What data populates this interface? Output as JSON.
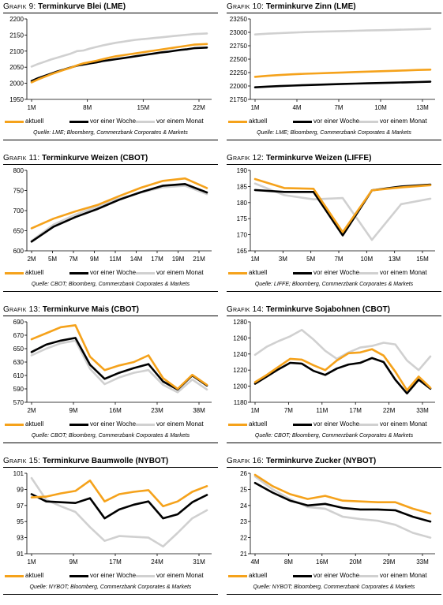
{
  "colors": {
    "aktuell": "#f5a21b",
    "woche": "#000000",
    "monat": "#d0d0d0"
  },
  "legend": [
    "aktuell",
    "vor einer Woche",
    "vor einem Monat"
  ],
  "panels": [
    {
      "prefix": "Grafik 9:",
      "title": "Terminkurve Blei (LME)",
      "source": "Quelle: LME; Bloomberg, Commerzbank Corporates & Markets",
      "chart_data": {
        "type": "line",
        "title": "Terminkurve Blei (LME)",
        "x_ticks": [
          "1M",
          "8M",
          "15M",
          "22M"
        ],
        "yticks": [
          1950,
          2000,
          2050,
          2100,
          2150,
          2200
        ],
        "ylim": [
          1950,
          2200
        ],
        "series": [
          {
            "name": "aktuell",
            "values": [
              2003,
              2012,
              2020,
              2028,
              2035,
              2042,
              2048,
              2056,
              2062,
              2066,
              2070,
              2075,
              2080,
              2084,
              2087,
              2090,
              2093,
              2096,
              2099,
              2102,
              2105,
              2108,
              2111,
              2114,
              2117,
              2120,
              2121,
              2122
            ]
          },
          {
            "name": "vor einer Woche",
            "values": [
              2007,
              2016,
              2023,
              2030,
              2037,
              2043,
              2049,
              2055,
              2058,
              2062,
              2065,
              2069,
              2072,
              2075,
              2078,
              2081,
              2084,
              2087,
              2090,
              2093,
              2096,
              2098,
              2101,
              2104,
              2106,
              2109,
              2110,
              2111
            ]
          },
          {
            "name": "vor einem Monat",
            "values": [
              2052,
              2060,
              2067,
              2074,
              2080,
              2086,
              2092,
              2100,
              2102,
              2108,
              2113,
              2118,
              2122,
              2126,
              2129,
              2132,
              2135,
              2137,
              2139,
              2141,
              2143,
              2145,
              2147,
              2149,
              2151,
              2153,
              2154,
              2155
            ]
          }
        ]
      }
    },
    {
      "prefix": "Grafik 10:",
      "title": "Terminkurve Zinn (LME)",
      "source": "Quelle: LME; Bloomberg, Commerzbank Corporates & Markets",
      "chart_data": {
        "type": "line",
        "title": "Terminkurve Zinn (LME)",
        "x_ticks": [
          "1M",
          "4M",
          "7M",
          "10M",
          "13M"
        ],
        "yticks": [
          21750,
          22000,
          22250,
          22500,
          22750,
          23000,
          23250
        ],
        "ylim": [
          21750,
          23250
        ],
        "series": [
          {
            "name": "aktuell",
            "values": [
              22170,
              22190,
              22205,
              22218,
              22228,
              22236,
              22244,
              22252,
              22260,
              22268,
              22275,
              22283,
              22290,
              22298,
              22305
            ]
          },
          {
            "name": "vor einer Woche",
            "values": [
              21975,
              21988,
              21998,
              22008,
              22016,
              22024,
              22031,
              22038,
              22044,
              22050,
              22056,
              22062,
              22068,
              22074,
              22080
            ]
          },
          {
            "name": "vor einem Monat",
            "values": [
              22960,
              22975,
              22985,
              22995,
              23005,
              23012,
              23018,
              23024,
              23030,
              23035,
              23040,
              23046,
              23052,
              23058,
              23064
            ]
          }
        ]
      }
    },
    {
      "prefix": "Grafik 11:",
      "title": "Terminkurve Weizen (CBOT)",
      "source": "Quelle: CBOT; Bloomberg, Commerzbank Corporates & Markets",
      "chart_data": {
        "type": "line",
        "title": "Terminkurve Weizen (CBOT)",
        "x_ticks": [
          "2M",
          "5M",
          "7M",
          "9M",
          "11M",
          "14M",
          "17M",
          "19M",
          "21M"
        ],
        "yticks": [
          600,
          650,
          700,
          750,
          800
        ],
        "ylim": [
          600,
          800
        ],
        "series": [
          {
            "name": "aktuell",
            "values": [
              656,
              680,
              698,
              714,
              736,
              757,
              774,
              780,
              756
            ]
          },
          {
            "name": "vor einer Woche",
            "values": [
              623,
              660,
              684,
              704,
              727,
              746,
              762,
              766,
              745
            ]
          },
          {
            "name": "vor einem Monat",
            "values": [
              625,
              665,
              690,
              710,
              730,
              745,
              758,
              762,
              741
            ]
          }
        ]
      }
    },
    {
      "prefix": "Grafik 12:",
      "title": "Terminkurve Weizen (LIFFE)",
      "source": "Quelle: LIFFE; Bloomberg, Commerzbank Corporates & Markets",
      "chart_data": {
        "type": "line",
        "title": "Terminkurve Weizen (LIFFE)",
        "x_ticks": [
          "1M",
          "3M",
          "5M",
          "7M",
          "10M",
          "13M",
          "15M"
        ],
        "yticks": [
          165,
          170,
          175,
          180,
          185,
          190
        ],
        "ylim": [
          165,
          190
        ],
        "series": [
          {
            "name": "aktuell",
            "values": [
              187.3,
              184.5,
              184.3,
              170.8,
              183.8,
              184.7,
              185.4
            ]
          },
          {
            "name": "vor einer Woche",
            "values": [
              183.9,
              183.3,
              183.3,
              169.8,
              183.8,
              185.0,
              185.6
            ]
          },
          {
            "name": "vor einem Monat",
            "values": [
              185.9,
              182.3,
              181.0,
              181.4,
              168.4,
              179.5,
              181.2
            ]
          }
        ]
      }
    },
    {
      "prefix": "Grafik 13:",
      "title": "Terminkurve Mais (CBOT)",
      "source": "Quelle: CBOT; Bloomberg, Commerzbank Corporates & Markets",
      "chart_data": {
        "type": "line",
        "title": "Terminkurve Mais (CBOT)",
        "x_ticks": [
          "2M",
          "9M",
          "16M",
          "23M",
          "38M"
        ],
        "yticks": [
          570,
          590,
          610,
          630,
          650,
          670,
          690
        ],
        "ylim": [
          570,
          690
        ],
        "series": [
          {
            "name": "aktuell",
            "values": [
              664,
              673,
              682,
              685,
              638,
              618,
              625,
              630,
              640,
              606,
              590,
              611,
              596
            ]
          },
          {
            "name": "vor einer Woche",
            "values": [
              645,
              656,
              662,
              666,
              626,
              605,
              614,
              621,
              627,
              601,
              589,
              610,
              595
            ]
          },
          {
            "name": "vor einem Monat",
            "values": [
              640,
              650,
              658,
              662,
              620,
              597,
              607,
              614,
              618,
              596,
              585,
              604,
              589
            ]
          }
        ]
      }
    },
    {
      "prefix": "Grafik 14:",
      "title": "Terminkurve Sojabohnen (CBOT)",
      "source": "Quelle: CBOT; Bloomberg, Commerzbank Corporates & Markets",
      "chart_data": {
        "type": "line",
        "title": "Terminkurve Sojabohnen (CBOT)",
        "x_ticks": [
          "1M",
          "7M",
          "11M",
          "17M",
          "22M",
          "33M"
        ],
        "yticks": [
          1180,
          1200,
          1220,
          1240,
          1260,
          1280
        ],
        "ylim": [
          1180,
          1280
        ],
        "series": [
          {
            "name": "aktuell",
            "values": [
              1205,
              1214,
              1224,
              1234,
              1233,
              1226,
              1220,
              1232,
              1241,
              1242,
              1246,
              1238,
              1218,
              1195,
              1212,
              1198
            ]
          },
          {
            "name": "vor einer Woche",
            "values": [
              1203,
              1212,
              1221,
              1229,
              1228,
              1219,
              1214,
              1222,
              1227,
              1229,
              1235,
              1230,
              1208,
              1191,
              1208,
              1197
            ]
          },
          {
            "name": "vor einem Monat",
            "values": [
              1239,
              1249,
              1256,
              1262,
              1270,
              1258,
              1244,
              1234,
              1242,
              1248,
              1250,
              1254,
              1252,
              1232,
              1220,
              1237
            ]
          }
        ]
      }
    },
    {
      "prefix": "Grafik 15:",
      "title": "Terminkurve Baumwolle (NYBOT)",
      "source": "Quelle: NYBOT; Bloomberg, Commerzbank Corporates & Markets",
      "chart_data": {
        "type": "line",
        "title": "Terminkurve Baumwolle (NYBOT)",
        "x_ticks": [
          "1M",
          "9M",
          "17M",
          "24M",
          "31M"
        ],
        "yticks": [
          91,
          93,
          95,
          97,
          99,
          101
        ],
        "ylim": [
          91,
          101
        ],
        "series": [
          {
            "name": "aktuell",
            "values": [
              98.0,
              98.1,
              98.5,
              98.8,
              100.1,
              97.5,
              98.4,
              98.7,
              98.9,
              96.9,
              97.5,
              98.7,
              99.4
            ]
          },
          {
            "name": "vor einer Woche",
            "values": [
              98.4,
              97.5,
              97.4,
              97.3,
              97.9,
              95.4,
              96.5,
              97.1,
              97.5,
              95.4,
              95.9,
              97.4,
              98.3
            ]
          },
          {
            "name": "vor einem Monat",
            "values": [
              100.4,
              97.7,
              96.9,
              96.2,
              94.3,
              92.6,
              93.2,
              93.1,
              93.0,
              91.9,
              93.6,
              95.4,
              96.4
            ]
          }
        ]
      }
    },
    {
      "prefix": "Grafik 16:",
      "title": "Terminkurve Zucker (NYBOT)",
      "source": "Quelle: NYBOT; Bloomberg, Commerzbank Corporates & Markets",
      "chart_data": {
        "type": "line",
        "title": "Terminkurve Zucker (NYBOT)",
        "x_ticks": [
          "4M",
          "8M",
          "16M",
          "20M",
          "29M",
          "33M"
        ],
        "yticks": [
          21,
          22,
          23,
          24,
          25,
          26
        ],
        "ylim": [
          21,
          26
        ],
        "series": [
          {
            "name": "aktuell",
            "values": [
              25.9,
              25.2,
              24.7,
              24.4,
              24.6,
              24.3,
              24.25,
              24.2,
              24.2,
              23.8,
              23.5
            ]
          },
          {
            "name": "vor einer Woche",
            "values": [
              25.4,
              24.8,
              24.3,
              24.0,
              24.1,
              23.85,
              23.75,
              23.75,
              23.7,
              23.3,
              23.0
            ]
          },
          {
            "name": "vor einem Monat",
            "values": [
              25.8,
              25.0,
              24.4,
              23.9,
              23.8,
              23.3,
              23.15,
              23.05,
              22.8,
              22.3,
              22.0
            ]
          }
        ]
      }
    }
  ]
}
